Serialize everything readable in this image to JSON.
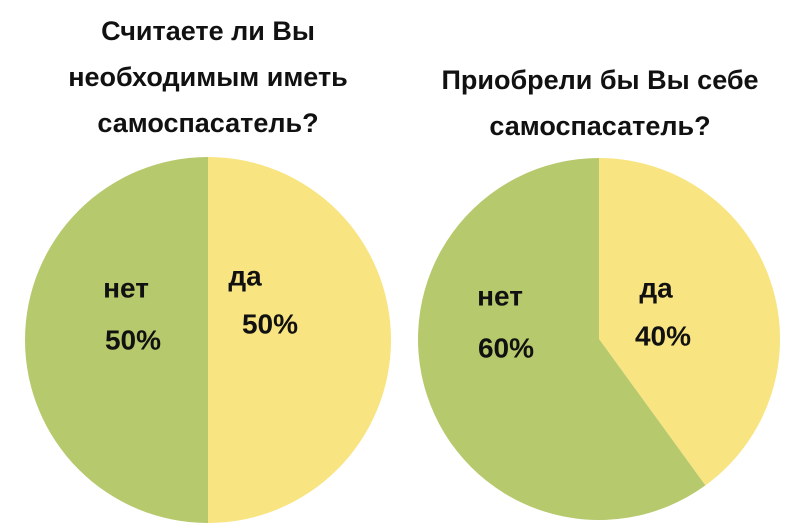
{
  "chart_data": [
    {
      "type": "pie",
      "title": "Считаете ли Вы необходимым иметь самоспасатель?",
      "categories": [
        "да",
        "нет"
      ],
      "values": [
        50,
        50
      ],
      "value_labels": [
        "50%",
        "50%"
      ],
      "colors": [
        "#f8e480",
        "#b6c96c"
      ]
    },
    {
      "type": "pie",
      "title": "Приобрели бы Вы себе самоспасатель?",
      "categories": [
        "да",
        "нет"
      ],
      "values": [
        40,
        60
      ],
      "value_labels": [
        "40%",
        "60%"
      ],
      "colors": [
        "#f8e480",
        "#b6c96c"
      ]
    }
  ]
}
